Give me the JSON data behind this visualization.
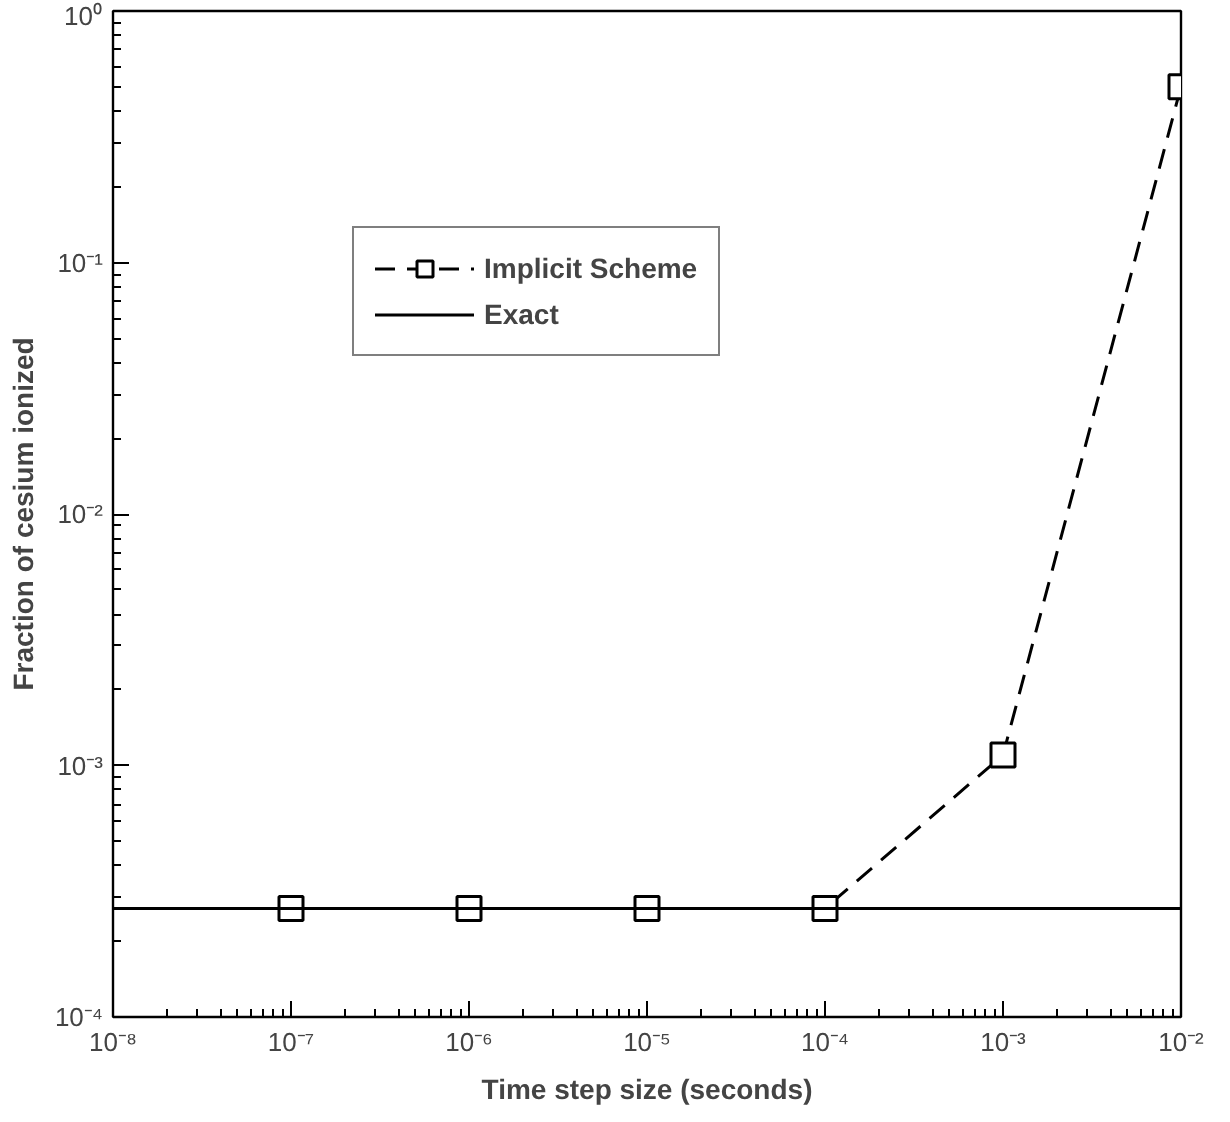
{
  "chart_data": {
    "type": "line",
    "xlabel": "Time step size (seconds)",
    "ylabel": "Fraction of cesium ionized",
    "log": "xy",
    "xlim": [
      1e-08,
      0.01
    ],
    "ylim": [
      0.0001,
      1
    ],
    "xticks": [
      {
        "value": 1e-08,
        "label": "10⁻⁸"
      },
      {
        "value": 1e-07,
        "label": "10⁻⁷"
      },
      {
        "value": 1e-06,
        "label": "10⁻⁶"
      },
      {
        "value": 1e-05,
        "label": "10⁻⁵"
      },
      {
        "value": 0.0001,
        "label": "10⁻⁴"
      },
      {
        "value": 0.001,
        "label": "10⁻³"
      },
      {
        "value": 0.01,
        "label": "10⁻²"
      }
    ],
    "yticks": [
      {
        "value": 0.0001,
        "label": "10⁻⁴"
      },
      {
        "value": 0.001,
        "label": "10⁻³"
      },
      {
        "value": 0.01,
        "label": "10⁻²"
      },
      {
        "value": 0.1,
        "label": "10⁻¹"
      },
      {
        "value": 1,
        "label": "10⁰"
      }
    ],
    "legend": "top left",
    "grid": false,
    "series": [
      {
        "name": "Implicit Scheme",
        "color": "#000000",
        "x": [
          1e-07,
          1e-06,
          1e-05,
          0.0001,
          0.001,
          0.01
        ],
        "values": [
          0.00027,
          0.00027,
          0.00027,
          0.00027,
          0.0011,
          0.5
        ],
        "marker": "square",
        "line_style": "dashed"
      },
      {
        "name": "Exact",
        "color": "#000000",
        "x": [
          1e-08,
          0.01
        ],
        "values": [
          0.00027,
          0.00027
        ],
        "marker": "none",
        "line_style": "solid"
      }
    ]
  }
}
